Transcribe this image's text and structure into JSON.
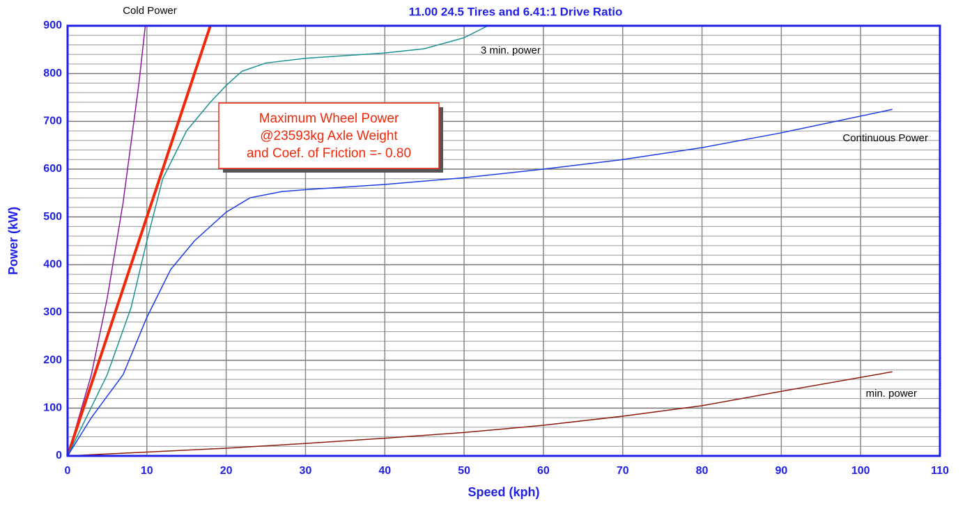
{
  "chart_data": {
    "type": "line",
    "subtitle": "11.00 24.5 Tires and 6.41:1 Drive Ratio",
    "xlabel": "Speed  (kph)",
    "ylabel": "Power  (kW)",
    "annotation": [
      "Maximum Wheel Power",
      "@23593kg Axle Weight",
      "and Coef. of Friction =- 0.80"
    ],
    "xlim": [
      0,
      110
    ],
    "ylim": [
      0,
      900
    ],
    "xticks": [
      0,
      10,
      20,
      30,
      40,
      50,
      60,
      70,
      80,
      90,
      100,
      110
    ],
    "yticks": [
      0,
      100,
      200,
      300,
      400,
      500,
      600,
      700,
      800,
      900
    ],
    "yminorticks": [
      20,
      40,
      60,
      80,
      120,
      140,
      160,
      180,
      220,
      240,
      260,
      280,
      320,
      340,
      360,
      380,
      420,
      440,
      460,
      480,
      520,
      540,
      560,
      580,
      620,
      640,
      660,
      680,
      720,
      740,
      760,
      780,
      820,
      840,
      860,
      880
    ],
    "grid": true,
    "series": [
      {
        "name": "Cold Power",
        "color": "#8b1a9b",
        "width": 1.5,
        "x": [
          0,
          3,
          5,
          7,
          9,
          9.8
        ],
        "values": [
          0,
          170,
          330,
          530,
          780,
          900
        ]
      },
      {
        "color": "#f0280a",
        "width": 4,
        "x": [
          0,
          18
        ],
        "values": [
          0,
          900
        ]
      },
      {
        "name": "3 min. power",
        "color": "#1a9090",
        "width": 1.5,
        "x": [
          0,
          5,
          8,
          10,
          12,
          15,
          18,
          20,
          22,
          25,
          30,
          40,
          45,
          50,
          53
        ],
        "values": [
          0,
          170,
          310,
          450,
          580,
          680,
          740,
          775,
          805,
          822,
          832,
          843,
          852,
          875,
          900
        ]
      },
      {
        "name": "Continuous Power",
        "color": "#1a3ae6",
        "width": 1.5,
        "x": [
          0,
          3,
          7,
          10,
          13,
          16,
          20,
          23,
          27,
          30,
          40,
          50,
          60,
          70,
          80,
          90,
          104
        ],
        "values": [
          0,
          80,
          170,
          290,
          390,
          450,
          510,
          540,
          553,
          557,
          568,
          582,
          600,
          620,
          645,
          676,
          725
        ]
      },
      {
        "name": "min. power",
        "color": "#8b1a0a",
        "width": 1.5,
        "x": [
          0,
          10,
          20,
          30,
          40,
          50,
          60,
          70,
          80,
          90,
          104
        ],
        "values": [
          0,
          8,
          16,
          26,
          37,
          49,
          64,
          83,
          105,
          135,
          176
        ]
      }
    ]
  }
}
